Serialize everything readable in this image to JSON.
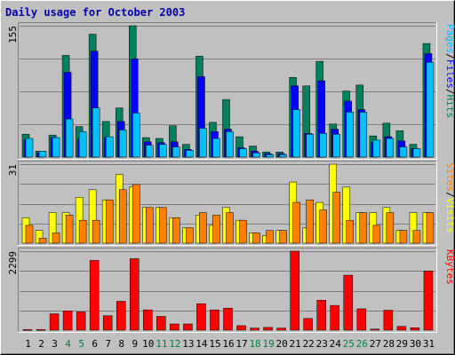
{
  "title": "Daily usage for October 2003",
  "colors": {
    "background": "#c0c0c0",
    "title": "#0000a8",
    "hits": "#00805c",
    "files": "#0000ff",
    "pages": "#00c0ff",
    "visits": "#ffff00",
    "sites": "#ff8000",
    "kbytes": "#ff0000",
    "weekend_label": "#008040",
    "weekday_label": "#000000",
    "grid": "#808080"
  },
  "chart_data": [
    {
      "type": "bar",
      "panel": "top",
      "ymax_label": "155",
      "ylim": [
        0,
        155
      ],
      "legend": [
        {
          "text": "Pages",
          "color": "#00c0ff"
        },
        {
          "text": "/",
          "color": "#000000"
        },
        {
          "text": "Files",
          "color": "#0000ff"
        },
        {
          "text": "/",
          "color": "#000000"
        },
        {
          "text": "Hits",
          "color": "#00805c"
        }
      ],
      "categories": [
        "1",
        "2",
        "3",
        "4",
        "5",
        "6",
        "7",
        "8",
        "9",
        "10",
        "11",
        "12",
        "13",
        "14",
        "15",
        "16",
        "17",
        "18",
        "19",
        "20",
        "21",
        "22",
        "23",
        "24",
        "25",
        "26",
        "27",
        "28",
        "29",
        "30",
        "31"
      ],
      "series": [
        {
          "name": "Hits",
          "values": [
            27,
            7,
            26,
            120,
            36,
            145,
            42,
            58,
            155,
            23,
            22,
            37,
            15,
            119,
            41,
            68,
            24,
            13,
            6,
            6,
            94,
            84,
            113,
            39,
            78,
            85,
            25,
            40,
            31,
            15,
            134
          ]
        },
        {
          "name": "Files",
          "values": [
            20,
            5,
            23,
            100,
            21,
            125,
            23,
            42,
            116,
            18,
            17,
            18,
            9,
            95,
            30,
            33,
            11,
            7,
            4,
            4,
            84,
            28,
            90,
            33,
            66,
            56,
            17,
            24,
            19,
            10,
            122
          ]
        },
        {
          "name": "Pages",
          "values": [
            22,
            7,
            23,
            45,
            30,
            58,
            24,
            32,
            52,
            14,
            15,
            12,
            8,
            34,
            22,
            30,
            10,
            5,
            3,
            3,
            56,
            27,
            28,
            27,
            53,
            53,
            20,
            22,
            12,
            10,
            112
          ]
        }
      ]
    },
    {
      "type": "bar",
      "panel": "middle",
      "ymax_label": "31",
      "ylim": [
        0,
        31
      ],
      "legend": [
        {
          "text": "Sites",
          "color": "#ff8000"
        },
        {
          "text": "/",
          "color": "#000000"
        },
        {
          "text": "Visits",
          "color": "#ffff00"
        }
      ],
      "categories": [
        "1",
        "2",
        "3",
        "4",
        "5",
        "6",
        "7",
        "8",
        "9",
        "10",
        "11",
        "12",
        "13",
        "14",
        "15",
        "16",
        "17",
        "18",
        "19",
        "20",
        "21",
        "22",
        "23",
        "24",
        "25",
        "26",
        "27",
        "28",
        "29",
        "30",
        "31"
      ],
      "series": [
        {
          "name": "Visits",
          "values": [
            10,
            5,
            12,
            12,
            18,
            21,
            17,
            27,
            22,
            14,
            14,
            10,
            6,
            11,
            7,
            14,
            9,
            4,
            3,
            5,
            24,
            6,
            16,
            31,
            22,
            12,
            12,
            14,
            5,
            12,
            12
          ]
        },
        {
          "name": "Sites",
          "values": [
            7,
            2,
            4,
            11,
            9,
            9,
            17,
            21,
            23,
            14,
            14,
            10,
            6,
            12,
            11,
            12,
            9,
            4,
            5,
            5,
            16,
            17,
            13,
            20,
            9,
            12,
            7,
            12,
            5,
            5,
            12
          ]
        }
      ]
    },
    {
      "type": "bar",
      "panel": "bottom",
      "ymax_label": "2299",
      "ylim": [
        0,
        2299
      ],
      "legend": [
        {
          "text": "KBytes",
          "color": "#ff0000"
        }
      ],
      "categories": [
        "1",
        "2",
        "3",
        "4",
        "5",
        "6",
        "7",
        "8",
        "9",
        "10",
        "11",
        "12",
        "13",
        "14",
        "15",
        "16",
        "17",
        "18",
        "19",
        "20",
        "21",
        "22",
        "23",
        "24",
        "25",
        "26",
        "27",
        "28",
        "29",
        "30",
        "31"
      ],
      "series": [
        {
          "name": "KBytes",
          "values": [
            20,
            20,
            475,
            560,
            530,
            2030,
            420,
            840,
            2080,
            590,
            400,
            180,
            180,
            770,
            590,
            640,
            130,
            60,
            80,
            60,
            2299,
            340,
            870,
            720,
            1600,
            620,
            30,
            580,
            110,
            70,
            1720
          ]
        }
      ]
    }
  ],
  "x_labels": [
    {
      "text": "1",
      "weekend": false
    },
    {
      "text": "2",
      "weekend": false
    },
    {
      "text": "3",
      "weekend": false
    },
    {
      "text": "4",
      "weekend": true
    },
    {
      "text": "5",
      "weekend": true
    },
    {
      "text": "6",
      "weekend": false
    },
    {
      "text": "7",
      "weekend": false
    },
    {
      "text": "8",
      "weekend": false
    },
    {
      "text": "9",
      "weekend": false
    },
    {
      "text": "10",
      "weekend": false
    },
    {
      "text": "11",
      "weekend": true
    },
    {
      "text": "12",
      "weekend": true
    },
    {
      "text": "13",
      "weekend": false
    },
    {
      "text": "14",
      "weekend": false
    },
    {
      "text": "15",
      "weekend": false
    },
    {
      "text": "16",
      "weekend": false
    },
    {
      "text": "17",
      "weekend": false
    },
    {
      "text": "18",
      "weekend": true
    },
    {
      "text": "19",
      "weekend": true
    },
    {
      "text": "20",
      "weekend": false
    },
    {
      "text": "21",
      "weekend": false
    },
    {
      "text": "22",
      "weekend": false
    },
    {
      "text": "23",
      "weekend": false
    },
    {
      "text": "24",
      "weekend": false
    },
    {
      "text": "25",
      "weekend": true
    },
    {
      "text": "26",
      "weekend": true
    },
    {
      "text": "27",
      "weekend": false
    },
    {
      "text": "28",
      "weekend": false
    },
    {
      "text": "29",
      "weekend": false
    },
    {
      "text": "30",
      "weekend": false
    },
    {
      "text": "31",
      "weekend": false
    }
  ]
}
